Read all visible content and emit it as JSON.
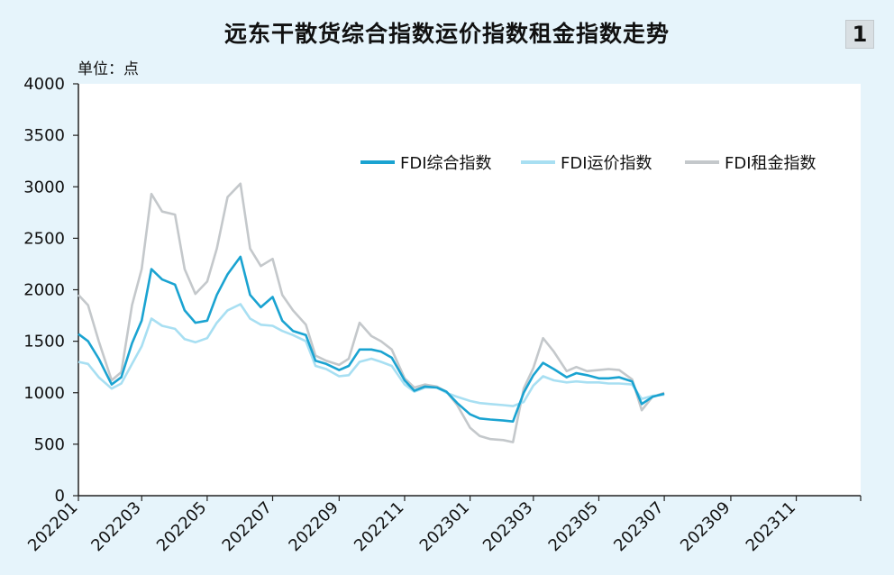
{
  "title": "远东干散货综合指数运价指数租金指数走势",
  "badge": "1",
  "unit_label": "单位：点",
  "chart_data": {
    "type": "line",
    "title": "远东干散货综合指数运价指数租金指数走势",
    "ylabel": "单位：点",
    "ylim": [
      0,
      4000
    ],
    "yticks": [
      0,
      500,
      1000,
      1500,
      2000,
      2500,
      3000,
      3500,
      4000
    ],
    "xticks": [
      "202201",
      "202203",
      "202205",
      "202207",
      "202209",
      "202211",
      "202301",
      "202303",
      "202305",
      "202307",
      "202309",
      "202311"
    ],
    "xrange": [
      "2022-01",
      "2023-12"
    ],
    "grid": "none",
    "legend_position": "top-right",
    "series": [
      {
        "name": "FDI综合指数",
        "color": "#1aa3d1",
        "x": [
          "2022-01-01",
          "2022-01-10",
          "2022-01-20",
          "2022-02-01",
          "2022-02-10",
          "2022-02-20",
          "2022-03-01",
          "2022-03-10",
          "2022-03-20",
          "2022-04-01",
          "2022-04-10",
          "2022-04-20",
          "2022-05-01",
          "2022-05-10",
          "2022-05-20",
          "2022-06-01",
          "2022-06-10",
          "2022-06-20",
          "2022-07-01",
          "2022-07-10",
          "2022-07-20",
          "2022-08-01",
          "2022-08-10",
          "2022-08-20",
          "2022-09-01",
          "2022-09-10",
          "2022-09-20",
          "2022-10-01",
          "2022-10-10",
          "2022-10-20",
          "2022-11-01",
          "2022-11-10",
          "2022-11-20",
          "2022-12-01",
          "2022-12-10",
          "2022-12-20",
          "2023-01-01",
          "2023-01-10",
          "2023-01-20",
          "2023-02-01",
          "2023-02-10",
          "2023-02-20",
          "2023-03-01",
          "2023-03-10",
          "2023-03-20",
          "2023-04-01",
          "2023-04-10",
          "2023-04-20",
          "2023-05-01",
          "2023-05-10",
          "2023-05-20",
          "2023-06-01",
          "2023-06-10",
          "2023-06-20",
          "2023-07-01"
        ],
        "values": [
          1570,
          1500,
          1330,
          1080,
          1150,
          1480,
          1700,
          2200,
          2100,
          2050,
          1800,
          1680,
          1700,
          1950,
          2150,
          2320,
          1950,
          1830,
          1930,
          1700,
          1600,
          1560,
          1310,
          1280,
          1220,
          1260,
          1420,
          1420,
          1400,
          1340,
          1120,
          1020,
          1060,
          1050,
          1010,
          900,
          790,
          750,
          740,
          730,
          720,
          1000,
          1170,
          1290,
          1230,
          1150,
          1190,
          1170,
          1140,
          1140,
          1150,
          1110,
          890,
          960,
          990
        ]
      },
      {
        "name": "FDI运价指数",
        "color": "#a8dff2",
        "x": [
          "2022-01-01",
          "2022-01-10",
          "2022-01-20",
          "2022-02-01",
          "2022-02-10",
          "2022-02-20",
          "2022-03-01",
          "2022-03-10",
          "2022-03-20",
          "2022-04-01",
          "2022-04-10",
          "2022-04-20",
          "2022-05-01",
          "2022-05-10",
          "2022-05-20",
          "2022-06-01",
          "2022-06-10",
          "2022-06-20",
          "2022-07-01",
          "2022-07-10",
          "2022-07-20",
          "2022-08-01",
          "2022-08-10",
          "2022-08-20",
          "2022-09-01",
          "2022-09-10",
          "2022-09-20",
          "2022-10-01",
          "2022-10-10",
          "2022-10-20",
          "2022-11-01",
          "2022-11-10",
          "2022-11-20",
          "2022-12-01",
          "2022-12-10",
          "2022-12-20",
          "2023-01-01",
          "2023-01-10",
          "2023-01-20",
          "2023-02-01",
          "2023-02-10",
          "2023-02-20",
          "2023-03-01",
          "2023-03-10",
          "2023-03-20",
          "2023-04-01",
          "2023-04-10",
          "2023-04-20",
          "2023-05-01",
          "2023-05-10",
          "2023-05-20",
          "2023-06-01",
          "2023-06-10",
          "2023-06-20",
          "2023-07-01"
        ],
        "values": [
          1300,
          1280,
          1150,
          1040,
          1090,
          1280,
          1450,
          1720,
          1650,
          1620,
          1520,
          1490,
          1530,
          1680,
          1800,
          1860,
          1720,
          1660,
          1650,
          1600,
          1560,
          1500,
          1260,
          1230,
          1160,
          1170,
          1300,
          1330,
          1300,
          1260,
          1080,
          1010,
          1050,
          1050,
          1000,
          960,
          920,
          900,
          890,
          880,
          870,
          910,
          1070,
          1160,
          1120,
          1100,
          1110,
          1100,
          1100,
          1090,
          1090,
          1080,
          940,
          970,
          980
        ]
      },
      {
        "name": "FDI租金指数",
        "color": "#c4c8cb",
        "x": [
          "2022-01-01",
          "2022-01-10",
          "2022-01-20",
          "2022-02-01",
          "2022-02-10",
          "2022-02-20",
          "2022-03-01",
          "2022-03-10",
          "2022-03-20",
          "2022-04-01",
          "2022-04-10",
          "2022-04-20",
          "2022-05-01",
          "2022-05-10",
          "2022-05-20",
          "2022-06-01",
          "2022-06-10",
          "2022-06-20",
          "2022-07-01",
          "2022-07-10",
          "2022-07-20",
          "2022-08-01",
          "2022-08-10",
          "2022-08-20",
          "2022-09-01",
          "2022-09-10",
          "2022-09-20",
          "2022-10-01",
          "2022-10-10",
          "2022-10-20",
          "2022-11-01",
          "2022-11-10",
          "2022-11-20",
          "2022-12-01",
          "2022-12-10",
          "2022-12-20",
          "2023-01-01",
          "2023-01-10",
          "2023-01-20",
          "2023-02-01",
          "2023-02-10",
          "2023-02-20",
          "2023-03-01",
          "2023-03-10",
          "2023-03-20",
          "2023-04-01",
          "2023-04-10",
          "2023-04-20",
          "2023-05-01",
          "2023-05-10",
          "2023-05-20",
          "2023-06-01",
          "2023-06-10",
          "2023-06-20",
          "2023-07-01"
        ],
        "values": [
          1950,
          1850,
          1500,
          1120,
          1200,
          1850,
          2200,
          2930,
          2760,
          2730,
          2200,
          1960,
          2080,
          2400,
          2900,
          3030,
          2400,
          2230,
          2300,
          1950,
          1800,
          1660,
          1360,
          1310,
          1270,
          1330,
          1680,
          1550,
          1500,
          1420,
          1140,
          1050,
          1080,
          1060,
          1010,
          880,
          660,
          580,
          550,
          540,
          520,
          1040,
          1240,
          1530,
          1400,
          1210,
          1250,
          1210,
          1220,
          1230,
          1220,
          1130,
          830,
          960,
          1000
        ]
      }
    ]
  }
}
